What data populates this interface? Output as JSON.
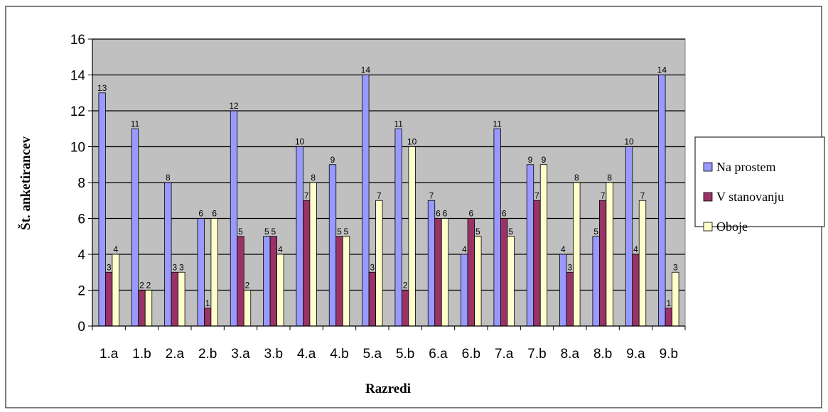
{
  "chart_data": {
    "type": "bar",
    "categories": [
      "1.a",
      "1.b",
      "2.a",
      "2.b",
      "3.a",
      "3.b",
      "4.a",
      "4.b",
      "5.a",
      "5.b",
      "6.a",
      "6.b",
      "7.a",
      "7.b",
      "8.a",
      "8.b",
      "9.a",
      "9.b"
    ],
    "series": [
      {
        "name": "Na prostem",
        "color": "#9999ff",
        "values": [
          13,
          11,
          8,
          6,
          12,
          5,
          10,
          9,
          14,
          11,
          7,
          4,
          11,
          9,
          4,
          5,
          10,
          14
        ]
      },
      {
        "name": "V stanovanju",
        "color": "#993366",
        "values": [
          3,
          2,
          3,
          1,
          5,
          5,
          7,
          5,
          3,
          2,
          6,
          6,
          6,
          7,
          3,
          7,
          4,
          1
        ]
      },
      {
        "name": "Oboje",
        "color": "#ffffcc",
        "values": [
          4,
          2,
          3,
          6,
          2,
          4,
          8,
          5,
          7,
          10,
          6,
          5,
          5,
          9,
          8,
          8,
          7,
          3
        ]
      }
    ],
    "xlabel": "Razredi",
    "ylabel": "Št. anketirancev",
    "ylim": [
      0,
      16
    ],
    "yticks": [
      0,
      2,
      4,
      6,
      8,
      10,
      12,
      14,
      16
    ],
    "grid": true,
    "plot_background": "#c0c0c0",
    "legend_position": "right"
  }
}
